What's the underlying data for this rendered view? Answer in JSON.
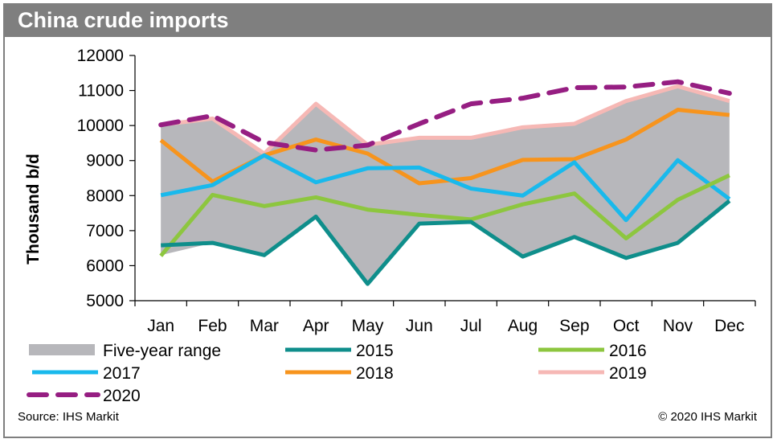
{
  "header": {
    "title": "China crude imports"
  },
  "footer": {
    "source": "Source: IHS Markit",
    "copyright": "© 2020 IHS Markit"
  },
  "colors": {
    "range_fill": "#b7b7bb",
    "s2015": "#0f8e8b",
    "s2016": "#8dc63f",
    "s2017": "#19b9ec",
    "s2018": "#f7941d",
    "s2019": "#f6b8b5",
    "s2020": "#961e82"
  },
  "chart_data": {
    "type": "line",
    "title": "China crude imports",
    "ylabel": "Thousand b/d",
    "xlabel": "",
    "ylim": [
      5000,
      12000
    ],
    "yticks": [
      5000,
      6000,
      7000,
      8000,
      9000,
      10000,
      11000,
      12000
    ],
    "categories": [
      "Jan",
      "Feb",
      "Mar",
      "Apr",
      "May",
      "Jun",
      "Jul",
      "Aug",
      "Sep",
      "Oct",
      "Nov",
      "Dec"
    ],
    "grid": false,
    "legend": "bottom",
    "range": {
      "name": "Five-year range",
      "upper": [
        10000,
        10200,
        9200,
        10600,
        9500,
        9650,
        9650,
        9950,
        10050,
        10700,
        11100,
        10700
      ],
      "lower": [
        6300,
        6650,
        6300,
        7400,
        5500,
        7200,
        7250,
        6250,
        6800,
        6200,
        6650,
        7850
      ]
    },
    "series": [
      {
        "name": "2015",
        "key": "s2015",
        "dash": false,
        "values": [
          6580,
          6650,
          6300,
          7400,
          5480,
          7200,
          7250,
          6260,
          6820,
          6220,
          6650,
          7850
        ]
      },
      {
        "name": "2016",
        "key": "s2016",
        "dash": false,
        "values": [
          6280,
          8020,
          7700,
          7950,
          7600,
          7450,
          7320,
          7750,
          8060,
          6780,
          7880,
          8580
        ]
      },
      {
        "name": "2017",
        "key": "s2017",
        "dash": false,
        "values": [
          8010,
          8300,
          9150,
          8380,
          8780,
          8800,
          8200,
          8000,
          8950,
          7300,
          9010,
          7900
        ]
      },
      {
        "name": "2018",
        "key": "s2018",
        "dash": false,
        "values": [
          9580,
          8400,
          9150,
          9600,
          9200,
          8350,
          8500,
          9020,
          9040,
          9600,
          10450,
          10300
        ]
      },
      {
        "name": "2019",
        "key": "s2019",
        "dash": false,
        "values": [
          10020,
          10200,
          9200,
          10620,
          9450,
          9650,
          9650,
          9950,
          10050,
          10700,
          11120,
          10700
        ]
      },
      {
        "name": "2020",
        "key": "s2020",
        "dash": true,
        "values": [
          10020,
          10280,
          9520,
          9300,
          9440,
          10050,
          10620,
          10780,
          11080,
          11100,
          11250,
          10920
        ]
      }
    ]
  }
}
